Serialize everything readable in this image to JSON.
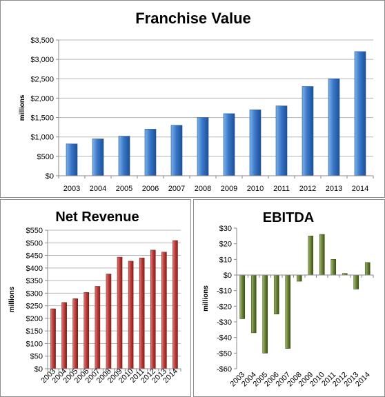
{
  "chart_data": [
    {
      "type": "bar",
      "title": "Franchise Value",
      "ylabel": "millions",
      "categories": [
        "2003",
        "2004",
        "2005",
        "2006",
        "2007",
        "2008",
        "2009",
        "2010",
        "2011",
        "2012",
        "2013",
        "2014"
      ],
      "values": [
        820,
        950,
        1020,
        1200,
        1300,
        1500,
        1600,
        1700,
        1800,
        2300,
        2500,
        3200
      ],
      "ylim": [
        0,
        3500
      ],
      "yticks": [
        0,
        500,
        1000,
        1500,
        2000,
        2500,
        3000,
        3500
      ],
      "ytick_labels": [
        "$0",
        "$500",
        "$1,000",
        "$1,500",
        "$2,000",
        "$2,500",
        "$3,000",
        "$3,500"
      ],
      "grid": true,
      "colors": {
        "top": "#7db3e8",
        "mid": "#3a78c9",
        "dark": "#1d4f96"
      }
    },
    {
      "type": "bar",
      "title": "Net Revenue",
      "ylabel": "millions",
      "categories": [
        "2003",
        "2004",
        "2005",
        "2006",
        "2007",
        "2008",
        "2009",
        "2010",
        "2011",
        "2012",
        "2013",
        "2014"
      ],
      "values": [
        238,
        263,
        278,
        303,
        327,
        376,
        443,
        427,
        440,
        471,
        463,
        509
      ],
      "ylim": [
        0,
        550
      ],
      "yticks": [
        0,
        50,
        100,
        150,
        200,
        250,
        300,
        350,
        400,
        450,
        500,
        550
      ],
      "ytick_labels": [
        "$0",
        "$50",
        "$100",
        "$150",
        "$200",
        "$250",
        "$300",
        "$350",
        "$400",
        "$450",
        "$500",
        "$550"
      ],
      "grid": true,
      "colors": {
        "top": "#e07a78",
        "mid": "#c0403d",
        "dark": "#7f1f1c"
      }
    },
    {
      "type": "bar",
      "title": "EBITDA",
      "ylabel": "millions",
      "categories": [
        "2003",
        "2004",
        "2005",
        "2006",
        "2007",
        "2008",
        "2009",
        "2010",
        "2011",
        "2012",
        "2013",
        "2014"
      ],
      "values": [
        -28,
        -37,
        -50,
        -25,
        -47,
        -4,
        25,
        26,
        10,
        1,
        -9,
        8
      ],
      "ylim": [
        -60,
        30
      ],
      "yticks": [
        -60,
        -50,
        -40,
        -30,
        -20,
        -10,
        0,
        10,
        20,
        30
      ],
      "ytick_labels": [
        "-$60",
        "-$50",
        "-$40",
        "-$30",
        "-$20",
        "-$10",
        "$0",
        "$10",
        "$20",
        "$30"
      ],
      "grid": false,
      "colors": {
        "top": "#a4b878",
        "mid": "#6e8838",
        "dark": "#3d5218"
      }
    }
  ]
}
